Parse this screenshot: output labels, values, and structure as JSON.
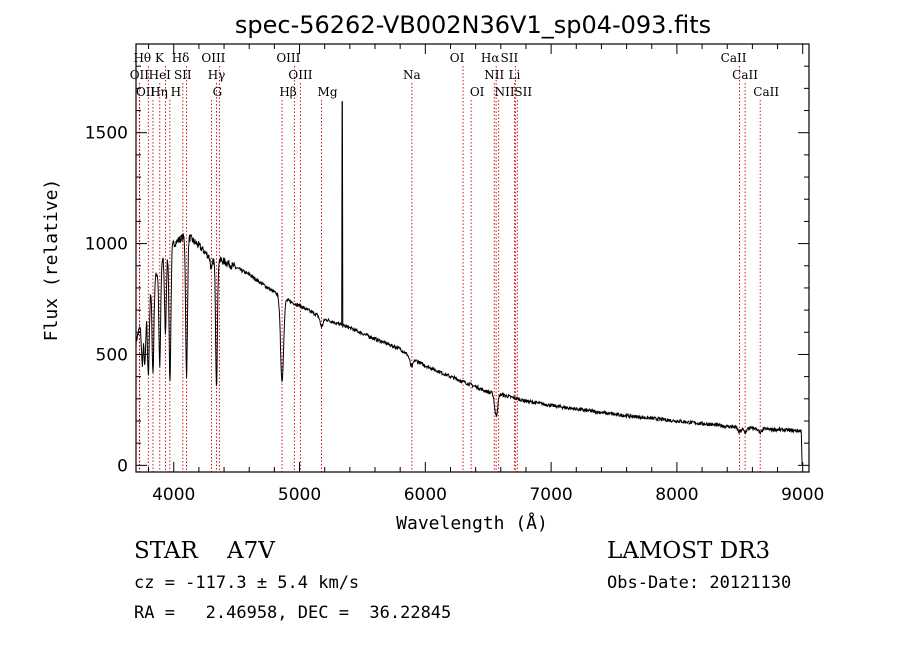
{
  "chart_data": {
    "type": "line",
    "title": "spec-56262-VB002N36V1_sp04-093.fits",
    "xlabel": "Wavelength (Å)",
    "ylabel": "Flux (relative)",
    "xlim": [
      3700,
      9050
    ],
    "ylim": [
      -30,
      1900
    ],
    "xticks": [
      4000,
      5000,
      6000,
      7000,
      8000,
      9000
    ],
    "yticks": [
      0,
      500,
      1000,
      1500
    ],
    "line_color": "#000000",
    "marker_color": "#cc0000",
    "spectrum": {
      "name": "flux",
      "continuum": [
        [
          3700,
          560
        ],
        [
          3800,
          760
        ],
        [
          3900,
          920
        ],
        [
          4000,
          1000
        ],
        [
          4100,
          1040
        ],
        [
          4200,
          990
        ],
        [
          4300,
          930
        ],
        [
          4400,
          920
        ],
        [
          4500,
          890
        ],
        [
          4600,
          860
        ],
        [
          4700,
          820
        ],
        [
          4800,
          780
        ],
        [
          4900,
          745
        ],
        [
          5000,
          720
        ],
        [
          5100,
          690
        ],
        [
          5200,
          660
        ],
        [
          5400,
          620
        ],
        [
          5600,
          570
        ],
        [
          5800,
          525
        ],
        [
          5900,
          480
        ],
        [
          6000,
          450
        ],
        [
          6200,
          400
        ],
        [
          6400,
          355
        ],
        [
          6500,
          330
        ],
        [
          6600,
          320
        ],
        [
          6800,
          290
        ],
        [
          7000,
          270
        ],
        [
          7500,
          230
        ],
        [
          8000,
          200
        ],
        [
          8500,
          170
        ],
        [
          9000,
          155
        ]
      ],
      "absorptions": [
        [
          3750,
          200
        ],
        [
          3771,
          250
        ],
        [
          3798,
          350
        ],
        [
          3835,
          400
        ],
        [
          3889,
          450
        ],
        [
          3934,
          350
        ],
        [
          3970,
          600
        ],
        [
          4102,
          650
        ],
        [
          4300,
          50
        ],
        [
          4340,
          560
        ],
        [
          4861,
          380
        ],
        [
          5175,
          40
        ],
        [
          5890,
          40
        ],
        [
          6563,
          100
        ],
        [
          8498,
          20
        ],
        [
          8542,
          20
        ],
        [
          8662,
          20
        ]
      ],
      "spike": {
        "x": 5340,
        "y": 1640
      }
    },
    "lines": [
      {
        "label": "Hθ",
        "wavelength": 3798,
        "row": 0
      },
      {
        "label": "K",
        "wavelength": 3934,
        "row": 0
      },
      {
        "label": "Hδ",
        "wavelength": 4102,
        "row": 0
      },
      {
        "label": "OIII",
        "wavelength": 4363,
        "row": 0
      },
      {
        "label": "OIII",
        "wavelength": 4959,
        "row": 0
      },
      {
        "label": "OI",
        "wavelength": 6300,
        "row": 0
      },
      {
        "label": "Hα",
        "wavelength": 6563,
        "row": 0
      },
      {
        "label": "SII",
        "wavelength": 6716,
        "row": 0
      },
      {
        "label": "CaII",
        "wavelength": 8498,
        "row": 0
      },
      {
        "label": "OII",
        "wavelength": 3727,
        "row": 1
      },
      {
        "label": "HeI",
        "wavelength": 3889,
        "row": 1
      },
      {
        "label": "SII",
        "wavelength": 4072,
        "row": 1
      },
      {
        "label": "Hγ",
        "wavelength": 4340,
        "row": 1
      },
      {
        "label": "OIII",
        "wavelength": 5007,
        "row": 1
      },
      {
        "label": "Na",
        "wavelength": 5893,
        "row": 1
      },
      {
        "label": "NII",
        "wavelength": 6548,
        "row": 1
      },
      {
        "label": "Li",
        "wavelength": 6708,
        "row": 1
      },
      {
        "label": "CaII",
        "wavelength": 8542,
        "row": 1
      },
      {
        "label": "OII",
        "wavelength": 3729,
        "row": 2
      },
      {
        "label": "Hη",
        "wavelength": 3835,
        "row": 2
      },
      {
        "label": "H",
        "wavelength": 3969,
        "row": 2
      },
      {
        "label": "G",
        "wavelength": 4300,
        "row": 2
      },
      {
        "label": "Hβ",
        "wavelength": 4861,
        "row": 2
      },
      {
        "label": "Mg",
        "wavelength": 5175,
        "row": 2
      },
      {
        "label": "OI",
        "wavelength": 6364,
        "row": 2
      },
      {
        "label": "NII",
        "wavelength": 6583,
        "row": 2
      },
      {
        "label": "SII",
        "wavelength": 6731,
        "row": 2
      },
      {
        "label": "CaII",
        "wavelength": 8662,
        "row": 2
      }
    ]
  },
  "info": {
    "classification": "STAR    A7V",
    "survey": "LAMOST DR3",
    "redshift": "cz = -117.3 ± 5.4 km/s",
    "obs_date": "Obs-Date: 20121130",
    "coords": "RA =   2.46958, DEC =  36.22845"
  }
}
